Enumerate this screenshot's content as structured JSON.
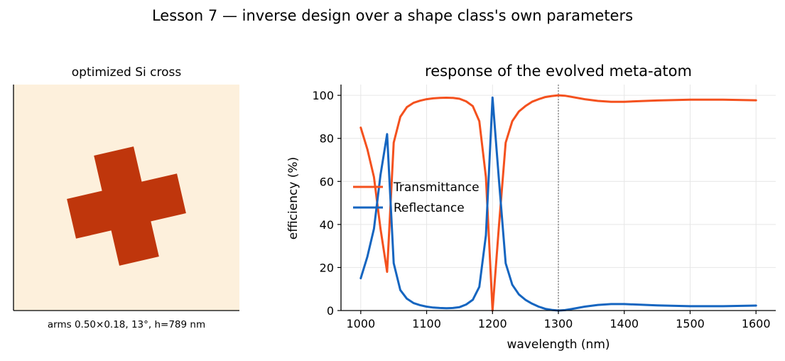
{
  "figure": {
    "suptitle": "Lesson 7 — inverse design over a shape class's own parameters"
  },
  "left_panel": {
    "title": "optimized Si cross",
    "caption": "arms 0.50×0.18, 13°, h=789 nm",
    "background_color": "#fdf0dc",
    "shape_color": "#bf360c",
    "shape": {
      "type": "cross",
      "arm_length": 0.5,
      "arm_width": 0.18,
      "rotation_deg": 13,
      "height_nm": 789
    }
  },
  "chart_data": {
    "type": "line",
    "title": "response of the evolved meta-atom",
    "xlabel": "wavelength (nm)",
    "ylabel": "efficiency (%)",
    "xlim": [
      970,
      1630
    ],
    "ylim": [
      0,
      105
    ],
    "xticks": [
      1000,
      1100,
      1200,
      1300,
      1400,
      1500,
      1600
    ],
    "yticks": [
      0,
      20,
      40,
      60,
      80,
      100
    ],
    "grid": true,
    "legend_position": "center-left",
    "vline": {
      "x": 1300,
      "style": "dotted",
      "color": "#888888"
    },
    "series": [
      {
        "name": "Transmittance",
        "color": "#f4511e",
        "x": [
          1000,
          1010,
          1020,
          1030,
          1040,
          1050,
          1060,
          1070,
          1080,
          1090,
          1100,
          1110,
          1120,
          1130,
          1140,
          1150,
          1160,
          1170,
          1180,
          1190,
          1200,
          1210,
          1220,
          1230,
          1240,
          1250,
          1260,
          1270,
          1280,
          1290,
          1300,
          1310,
          1320,
          1340,
          1360,
          1380,
          1400,
          1450,
          1500,
          1550,
          1600
        ],
        "values": [
          85,
          75,
          62,
          38,
          18,
          78,
          90,
          94.5,
          96.5,
          97.5,
          98.2,
          98.6,
          98.8,
          98.9,
          98.8,
          98.4,
          97.2,
          95,
          88,
          62,
          0,
          40,
          78,
          88,
          92.5,
          95,
          97,
          98.2,
          99.2,
          99.7,
          100,
          99.8,
          99.3,
          98.2,
          97.4,
          97,
          97,
          97.6,
          98,
          98,
          97.7
        ]
      },
      {
        "name": "Reflectance",
        "color": "#1565c0",
        "x": [
          1000,
          1010,
          1020,
          1030,
          1040,
          1050,
          1060,
          1070,
          1080,
          1090,
          1100,
          1110,
          1120,
          1130,
          1140,
          1150,
          1160,
          1170,
          1180,
          1190,
          1200,
          1210,
          1220,
          1230,
          1240,
          1250,
          1260,
          1270,
          1280,
          1290,
          1300,
          1310,
          1320,
          1340,
          1360,
          1380,
          1400,
          1450,
          1500,
          1550,
          1600
        ],
        "values": [
          15,
          25,
          38,
          63,
          82,
          22,
          9.5,
          5.5,
          3.5,
          2.5,
          1.8,
          1.4,
          1.2,
          1.1,
          1.2,
          1.6,
          2.8,
          5,
          11,
          35,
          99,
          60,
          22,
          12,
          7.5,
          5,
          3.2,
          1.8,
          0.8,
          0.3,
          0,
          0.2,
          0.7,
          1.8,
          2.6,
          3,
          3,
          2.4,
          2,
          2,
          2.3
        ]
      }
    ]
  }
}
